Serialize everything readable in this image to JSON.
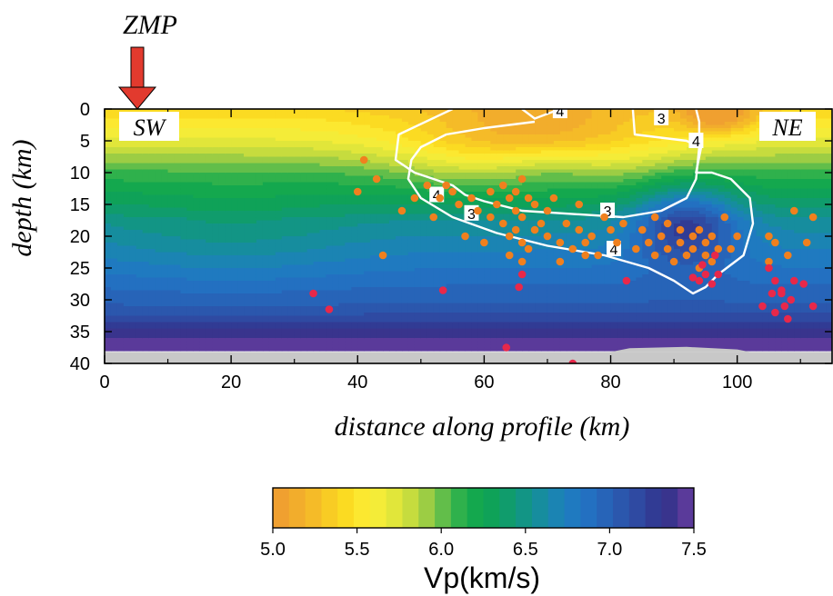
{
  "marker": {
    "label": "ZMP",
    "color": "#e23a2e",
    "x": 5
  },
  "chart_data": {
    "type": "heatmap",
    "xlabel": "distance along profile (km)",
    "ylabel": "depth (km)",
    "xlim": [
      0,
      115
    ],
    "ylim": [
      40,
      0
    ],
    "x_ticks": [
      0,
      20,
      40,
      60,
      80,
      100
    ],
    "y_ticks": [
      0,
      5,
      10,
      15,
      20,
      25,
      30,
      35,
      40
    ],
    "corner_labels": {
      "left": "SW",
      "right": "NE"
    },
    "contours": [
      {
        "label": "3",
        "points": [
          [
            83.5,
            0
          ],
          [
            83.8,
            4
          ],
          [
            92,
            5
          ],
          [
            94,
            6
          ],
          [
            93.5,
            11
          ],
          [
            92,
            14
          ],
          [
            88,
            16
          ],
          [
            82,
            17
          ],
          [
            66,
            16
          ],
          [
            60,
            14.5
          ],
          [
            57,
            13.5
          ],
          [
            55,
            12
          ],
          [
            52,
            11
          ],
          [
            49,
            10
          ],
          [
            46,
            8
          ],
          [
            46.5,
            4
          ],
          [
            55,
            0
          ]
        ],
        "labels_at": [
          [
            88,
            1.4
          ],
          [
            58,
            16.4
          ],
          [
            79.5,
            16
          ]
        ]
      },
      {
        "label": "4",
        "points": [
          [
            66,
            0
          ],
          [
            68,
            1.5
          ],
          [
            72,
            0
          ]
        ],
        "labels_at": [
          [
            72,
            0.3
          ]
        ]
      },
      {
        "label": "4",
        "points": [
          [
            93.5,
            0
          ],
          [
            94,
            2
          ],
          [
            94,
            4
          ],
          [
            94.3,
            6
          ],
          [
            93.5,
            10
          ],
          [
            96,
            10
          ],
          [
            99,
            11
          ],
          [
            102,
            14
          ],
          [
            102.5,
            18
          ],
          [
            101,
            23
          ],
          [
            97,
            26
          ],
          [
            95,
            28
          ],
          [
            93,
            29
          ],
          [
            90,
            27
          ],
          [
            86,
            25
          ],
          [
            79,
            23
          ],
          [
            70,
            21.5
          ],
          [
            62,
            19.5
          ],
          [
            55,
            17
          ],
          [
            50,
            14
          ],
          [
            48,
            11
          ],
          [
            48.5,
            8
          ],
          [
            50,
            6
          ],
          [
            54,
            4
          ],
          [
            60,
            3
          ],
          [
            68,
            2
          ]
        ],
        "labels_at": [
          [
            52.5,
            13.5
          ],
          [
            93.5,
            5
          ],
          [
            80.5,
            22
          ]
        ]
      }
    ],
    "earthquakes": [
      [
        41,
        8
      ],
      [
        40,
        13
      ],
      [
        43,
        11
      ],
      [
        47,
        16
      ],
      [
        49,
        14
      ],
      [
        51,
        12
      ],
      [
        52,
        17
      ],
      [
        53,
        14
      ],
      [
        54,
        12
      ],
      [
        55,
        13
      ],
      [
        56,
        15
      ],
      [
        57,
        20
      ],
      [
        58,
        14
      ],
      [
        59,
        16
      ],
      [
        60,
        21
      ],
      [
        61,
        13
      ],
      [
        61,
        17
      ],
      [
        62,
        15
      ],
      [
        63,
        12
      ],
      [
        63,
        18
      ],
      [
        64,
        14
      ],
      [
        64,
        20
      ],
      [
        65,
        13
      ],
      [
        65,
        16
      ],
      [
        65,
        19
      ],
      [
        66,
        11
      ],
      [
        66,
        17
      ],
      [
        66,
        21
      ],
      [
        67,
        14
      ],
      [
        67,
        22
      ],
      [
        68,
        15
      ],
      [
        68,
        19
      ],
      [
        69,
        18
      ],
      [
        70,
        16
      ],
      [
        70,
        20
      ],
      [
        71,
        14
      ],
      [
        72,
        21
      ],
      [
        73,
        18
      ],
      [
        74,
        22
      ],
      [
        75,
        15
      ],
      [
        75,
        19
      ],
      [
        76,
        21
      ],
      [
        77,
        20
      ],
      [
        78,
        23
      ],
      [
        79,
        17
      ],
      [
        80,
        19
      ],
      [
        81,
        21
      ],
      [
        82,
        18
      ],
      [
        84,
        22
      ],
      [
        85,
        19
      ],
      [
        86,
        21
      ],
      [
        87,
        17
      ],
      [
        87,
        23
      ],
      [
        88,
        20
      ],
      [
        89,
        18
      ],
      [
        89,
        22
      ],
      [
        90,
        24
      ],
      [
        91,
        19
      ],
      [
        91,
        21
      ],
      [
        92,
        23
      ],
      [
        93,
        20
      ],
      [
        93,
        22
      ],
      [
        94,
        19
      ],
      [
        94,
        25
      ],
      [
        95,
        21
      ],
      [
        95,
        23
      ],
      [
        96,
        24
      ],
      [
        96,
        20
      ],
      [
        97,
        22
      ],
      [
        98,
        17
      ],
      [
        99,
        22
      ],
      [
        100,
        20
      ],
      [
        105,
        24
      ],
      [
        105,
        20
      ],
      [
        106,
        21
      ],
      [
        109,
        16
      ],
      [
        112,
        17
      ],
      [
        108,
        23
      ],
      [
        111,
        21
      ],
      [
        44,
        23
      ],
      [
        64,
        23
      ],
      [
        66,
        24
      ],
      [
        72,
        24
      ],
      [
        76,
        23
      ]
    ],
    "deep_earthquakes": [
      [
        66,
        26
      ],
      [
        65.5,
        28
      ],
      [
        53.5,
        28.5
      ],
      [
        33,
        29
      ],
      [
        35.5,
        31.5
      ],
      [
        82.5,
        27
      ],
      [
        93,
        26.5
      ],
      [
        94,
        27
      ],
      [
        95,
        26
      ],
      [
        96,
        27.5
      ],
      [
        97,
        26
      ],
      [
        94.5,
        24.5
      ],
      [
        96.5,
        23
      ],
      [
        105,
        25
      ],
      [
        106,
        27
      ],
      [
        107,
        29
      ],
      [
        107.5,
        31
      ],
      [
        108,
        33
      ],
      [
        108.5,
        30
      ],
      [
        106,
        32
      ],
      [
        104,
        31
      ],
      [
        109,
        27
      ],
      [
        110.5,
        27.5
      ],
      [
        112,
        31
      ],
      [
        105.5,
        29
      ],
      [
        107,
        28.5
      ],
      [
        63.5,
        37.5
      ],
      [
        74,
        40
      ]
    ],
    "colorbar": {
      "label": "Vp(km/s)",
      "min": 5.0,
      "max": 7.5,
      "ticks": [
        "5.0",
        "5.5",
        "6.0",
        "6.5",
        "7.0",
        "7.5"
      ],
      "colors": [
        "#f0a030",
        "#f2ad2c",
        "#f5bb28",
        "#f8cc24",
        "#fbdb22",
        "#fce830",
        "#f4ec38",
        "#e1e63a",
        "#c6dc3e",
        "#9ccd44",
        "#62be4a",
        "#2fb14c",
        "#14a84e",
        "#0fa258",
        "#109c6c",
        "#129585",
        "#168d9e",
        "#1b84b3",
        "#1f7ac0",
        "#2370c1",
        "#2764b8",
        "#2b57ad",
        "#2f4aa2",
        "#313b94",
        "#39348d",
        "#5a3a9a"
      ]
    }
  }
}
